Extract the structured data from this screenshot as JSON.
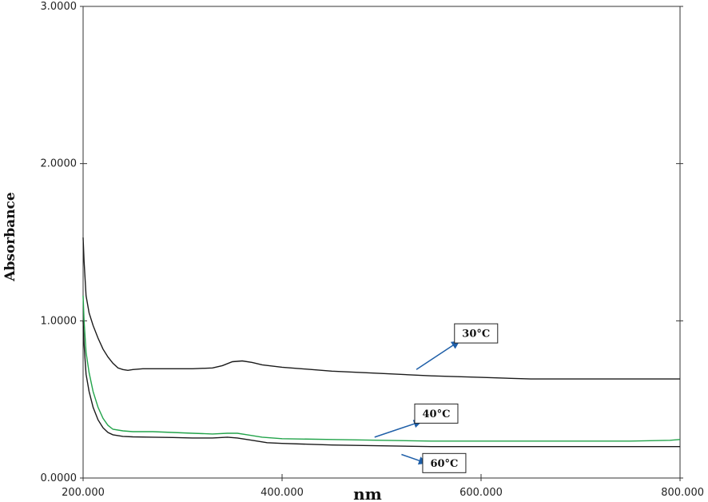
{
  "chart_data": {
    "type": "line",
    "xlabel": "nm",
    "ylabel": "Absorbance",
    "xlim": [
      200,
      800
    ],
    "ylim": [
      0,
      3
    ],
    "x_ticks": [
      {
        "value": 200,
        "label": "200.000"
      },
      {
        "value": 400,
        "label": "400.000"
      },
      {
        "value": 600,
        "label": "600.000"
      },
      {
        "value": 800,
        "label": "800.000"
      }
    ],
    "y_ticks": [
      {
        "value": 0,
        "label": "0.0000"
      },
      {
        "value": 1,
        "label": "1.0000"
      },
      {
        "value": 2,
        "label": "2.0000"
      },
      {
        "value": 3,
        "label": "3.0000"
      }
    ],
    "grid": false,
    "series": [
      {
        "color": "#1a1a1a",
        "points": [
          [
            200,
            1.53
          ],
          [
            201,
            1.38
          ],
          [
            203,
            1.16
          ],
          [
            206,
            1.05
          ],
          [
            210,
            0.97
          ],
          [
            215,
            0.89
          ],
          [
            220,
            0.82
          ],
          [
            225,
            0.77
          ],
          [
            230,
            0.73
          ],
          [
            235,
            0.7
          ],
          [
            240,
            0.69
          ],
          [
            245,
            0.685
          ],
          [
            250,
            0.69
          ],
          [
            260,
            0.695
          ],
          [
            270,
            0.695
          ],
          [
            290,
            0.695
          ],
          [
            310,
            0.695
          ],
          [
            330,
            0.7
          ],
          [
            340,
            0.715
          ],
          [
            350,
            0.74
          ],
          [
            360,
            0.745
          ],
          [
            370,
            0.735
          ],
          [
            380,
            0.72
          ],
          [
            400,
            0.705
          ],
          [
            450,
            0.68
          ],
          [
            500,
            0.665
          ],
          [
            550,
            0.65
          ],
          [
            600,
            0.64
          ],
          [
            650,
            0.63
          ],
          [
            700,
            0.63
          ],
          [
            750,
            0.63
          ],
          [
            800,
            0.63
          ]
        ]
      },
      {
        "color": "#22a34a",
        "points": [
          [
            200,
            1.16
          ],
          [
            201,
            1.0
          ],
          [
            203,
            0.8
          ],
          [
            206,
            0.67
          ],
          [
            210,
            0.55
          ],
          [
            215,
            0.45
          ],
          [
            220,
            0.38
          ],
          [
            225,
            0.335
          ],
          [
            230,
            0.31
          ],
          [
            240,
            0.3
          ],
          [
            250,
            0.295
          ],
          [
            270,
            0.295
          ],
          [
            290,
            0.29
          ],
          [
            310,
            0.285
          ],
          [
            330,
            0.28
          ],
          [
            345,
            0.285
          ],
          [
            355,
            0.285
          ],
          [
            365,
            0.275
          ],
          [
            380,
            0.26
          ],
          [
            400,
            0.25
          ],
          [
            450,
            0.245
          ],
          [
            500,
            0.24
          ],
          [
            550,
            0.235
          ],
          [
            600,
            0.235
          ],
          [
            650,
            0.235
          ],
          [
            700,
            0.235
          ],
          [
            750,
            0.235
          ],
          [
            790,
            0.24
          ],
          [
            800,
            0.245
          ]
        ]
      },
      {
        "color": "#1a1a1a",
        "points": [
          [
            200,
            1.0
          ],
          [
            201,
            0.85
          ],
          [
            203,
            0.66
          ],
          [
            206,
            0.55
          ],
          [
            210,
            0.45
          ],
          [
            215,
            0.37
          ],
          [
            220,
            0.32
          ],
          [
            225,
            0.29
          ],
          [
            230,
            0.275
          ],
          [
            240,
            0.265
          ],
          [
            250,
            0.262
          ],
          [
            270,
            0.26
          ],
          [
            290,
            0.258
          ],
          [
            310,
            0.255
          ],
          [
            330,
            0.255
          ],
          [
            345,
            0.26
          ],
          [
            355,
            0.255
          ],
          [
            370,
            0.24
          ],
          [
            385,
            0.225
          ],
          [
            400,
            0.22
          ],
          [
            450,
            0.21
          ],
          [
            500,
            0.205
          ],
          [
            550,
            0.2
          ],
          [
            600,
            0.2
          ],
          [
            650,
            0.2
          ],
          [
            700,
            0.2
          ],
          [
            750,
            0.2
          ],
          [
            800,
            0.2
          ]
        ]
      }
    ],
    "annotations": [
      {
        "text": "30°C",
        "label_x": 595,
        "label_y": 0.92,
        "arrow_from": [
          535,
          0.69
        ],
        "arrow_to": [
          578,
          0.87
        ]
      },
      {
        "text": "40°C",
        "label_x": 555,
        "label_y": 0.41,
        "arrow_from": [
          493,
          0.26
        ],
        "arrow_to": [
          540,
          0.36
        ]
      },
      {
        "text": "60°C",
        "label_x": 563,
        "label_y": 0.095,
        "arrow_from": [
          520,
          0.15
        ],
        "arrow_to": [
          545,
          0.095
        ]
      }
    ]
  }
}
